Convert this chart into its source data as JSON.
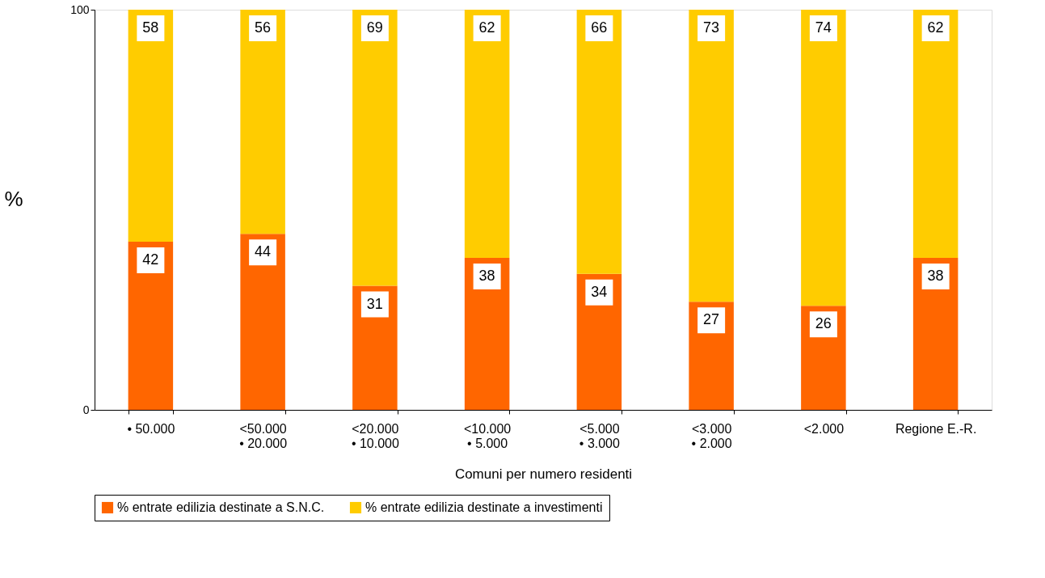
{
  "chart_data": {
    "type": "bar",
    "stacked": true,
    "xlabel": "Comuni per numero residenti",
    "ylabel": "%",
    "categories": [
      "• 50.000",
      "<50.000\n• 20.000",
      "<20.000\n• 10.000",
      "<10.000\n• 5.000",
      "<5.000\n• 3.000",
      "<3.000\n• 2.000",
      "<2.000",
      "Regione E.-R."
    ],
    "series": [
      {
        "name": "% entrate edilizia destinate a S.N.C.",
        "color": "#ff6600",
        "values": [
          42,
          44,
          31,
          38,
          34,
          27,
          26,
          38
        ]
      },
      {
        "name": "% entrate edilizia destinate a investimenti",
        "color": "#ffcc00",
        "values": [
          58,
          56,
          69,
          62,
          66,
          73,
          74,
          62
        ]
      }
    ],
    "ylim": [
      0,
      100
    ],
    "yticks": [
      0,
      100
    ],
    "grid": false,
    "legend": "bottom",
    "data_labels": true
  }
}
